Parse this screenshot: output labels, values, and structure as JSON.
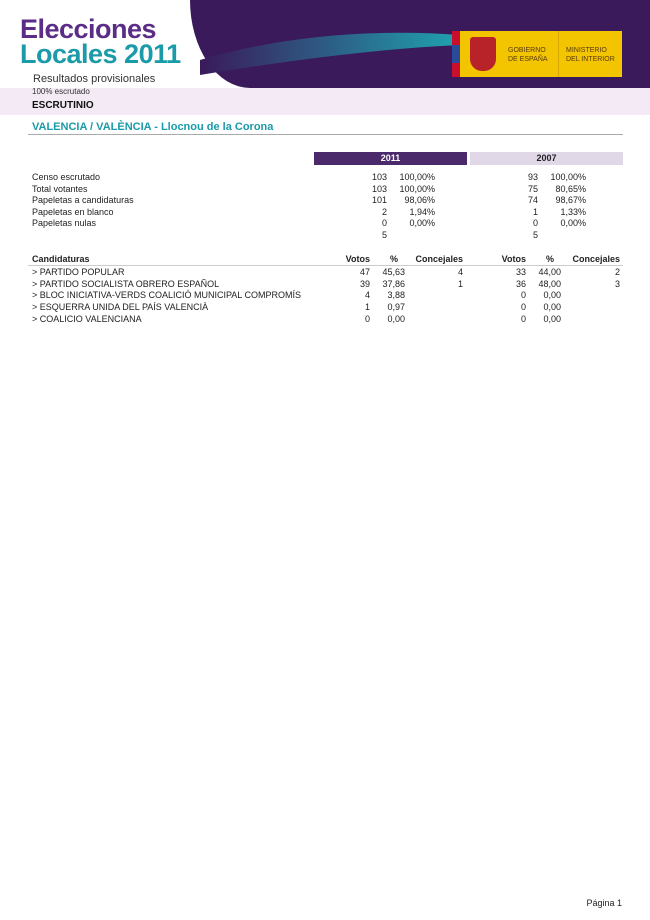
{
  "header": {
    "logo_line1": "Elecciones",
    "logo_line2": "Locales 2011",
    "subtitle": "Resultados provisionales",
    "progress": "100% escrutado",
    "government": [
      "GOBIERNO",
      "DE ESPAÑA"
    ],
    "ministry": [
      "MINISTERIO",
      "DEL INTERIOR"
    ]
  },
  "section": "ESCRUTINIO",
  "location": "VALENCIA / VALÈNCIA - Llocnou de la Corona",
  "years": [
    "2011",
    "2007"
  ],
  "summary": [
    {
      "label": "Censo escrutado",
      "v2011": "103",
      "p2011": "100,00%",
      "v2007": "93",
      "p2007": "100,00%"
    },
    {
      "label": "Total votantes",
      "v2011": "103",
      "p2011": "100,00%",
      "v2007": "75",
      "p2007": "80,65%"
    },
    {
      "label": "Papeletas a candidaturas",
      "v2011": "101",
      "p2011": "98,06%",
      "v2007": "74",
      "p2007": "98,67%"
    },
    {
      "label": "Papeletas en blanco",
      "v2011": "2",
      "p2011": "1,94%",
      "v2007": "1",
      "p2007": "1,33%"
    },
    {
      "label": "Papeletas nulas",
      "v2011": "0",
      "p2011": "0,00%",
      "v2007": "0",
      "p2007": "0,00%"
    },
    {
      "label": "",
      "v2011": "5",
      "p2011": "",
      "v2007": "5",
      "p2007": ""
    }
  ],
  "columns": {
    "name": "Candidaturas",
    "votes": "Votos",
    "pct": "%",
    "seats": "Concejales"
  },
  "parties": [
    {
      "name": "> PARTIDO POPULAR",
      "v2011": "47",
      "p2011": "45,63",
      "c2011": "4",
      "v2007": "33",
      "p2007": "44,00",
      "c2007": "2"
    },
    {
      "name": "> PARTIDO SOCIALISTA OBRERO ESPAÑOL",
      "v2011": "39",
      "p2011": "37,86",
      "c2011": "1",
      "v2007": "36",
      "p2007": "48,00",
      "c2007": "3"
    },
    {
      "name": "> BLOC INICIATIVA-VERDS COALICIÓ MUNICIPAL COMPROMÍS",
      "v2011": "4",
      "p2011": "3,88",
      "c2011": "",
      "v2007": "0",
      "p2007": "0,00",
      "c2007": ""
    },
    {
      "name": "> ESQUERRA UNIDA DEL PAÍS VALENCIÀ",
      "v2011": "1",
      "p2011": "0,97",
      "c2011": "",
      "v2007": "0",
      "p2007": "0,00",
      "c2007": ""
    },
    {
      "name": "> COALICIO VALENCIANA",
      "v2011": "0",
      "p2011": "0,00",
      "c2011": "",
      "v2007": "0",
      "p2007": "0,00",
      "c2007": ""
    }
  ],
  "footer": "Página 1",
  "colors": {
    "purple": "#4b2a6b",
    "teal": "#1b9aa8",
    "band": "#f3eaf6",
    "year2007": "#e0d8e6"
  }
}
